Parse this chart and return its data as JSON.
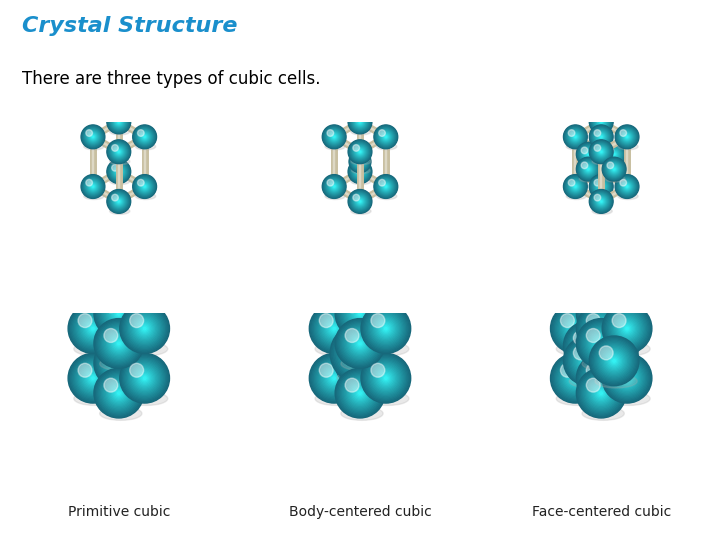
{
  "title": "Crystal Structure",
  "subtitle": "There are three types of cubic cells.",
  "title_color": "#1a8fcc",
  "subtitle_color": "#000000",
  "background_color": "#ffffff",
  "atom_color": "#1ca8d4",
  "atom_color2": "#29bde0",
  "atom_highlight": "#70d8f0",
  "atom_dark": "#0e7aaa",
  "bond_color": "#c8bfa0",
  "bond_lw": 5,
  "labels": [
    "Primitive cubic",
    "Body-centered cubic",
    "Face-centered cubic"
  ],
  "label_color": "#222222",
  "label_fontsize": 10,
  "title_fontsize": 16,
  "subtitle_fontsize": 12
}
